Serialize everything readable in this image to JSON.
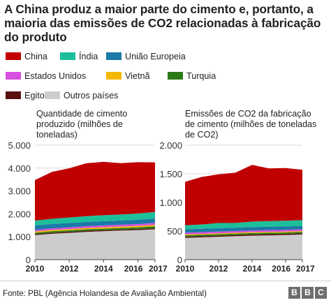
{
  "title": "A China produz a maior parte do cimento e, portanto, a maioria das emissões de CO2 relacionadas à fabricação do produto",
  "legend": [
    {
      "label": "China",
      "color": "#c00000"
    },
    {
      "label": "Índia",
      "color": "#1dbf9a"
    },
    {
      "label": "União Europeia",
      "color": "#1b7aa6"
    },
    {
      "label": "Estados Unidos",
      "color": "#d64fe0"
    },
    {
      "label": "Vietnã",
      "color": "#f5b800"
    },
    {
      "label": "Turquia",
      "color": "#2d7a1a"
    },
    {
      "label": "Egito",
      "color": "#5a0f0f"
    },
    {
      "label": "Outros países",
      "color": "#cccccc"
    }
  ],
  "source": "Fonte: PBL (Agência Holandesa de Avaliação Ambiental)",
  "brand": [
    "B",
    "B",
    "C"
  ],
  "chart_data": [
    {
      "type": "area",
      "title": "Quantidade de cimento produzido (milhões de toneladas)",
      "x": [
        2010,
        2011,
        2012,
        2013,
        2014,
        2015,
        2016,
        2017
      ],
      "xticks": [
        2010,
        2012,
        2014,
        2016,
        2017
      ],
      "ylim": [
        0,
        5000
      ],
      "yticks": [
        0,
        1000,
        2000,
        3000,
        4000,
        5000
      ],
      "ytick_labels": [
        "0",
        "1.000",
        "2.000",
        "3.000",
        "4.000",
        "5.000"
      ],
      "stacked": true,
      "series": [
        {
          "name": "Outros países",
          "values": [
            1070,
            1130,
            1170,
            1210,
            1240,
            1270,
            1290,
            1330
          ]
        },
        {
          "name": "Egito",
          "values": [
            45,
            45,
            45,
            45,
            45,
            45,
            45,
            45
          ]
        },
        {
          "name": "Turquia",
          "values": [
            60,
            65,
            65,
            70,
            70,
            70,
            75,
            80
          ]
        },
        {
          "name": "Vietnã",
          "values": [
            50,
            55,
            55,
            60,
            60,
            60,
            60,
            65
          ]
        },
        {
          "name": "Estados Unidos",
          "values": [
            70,
            70,
            75,
            75,
            80,
            80,
            85,
            85
          ]
        },
        {
          "name": "União Europeia",
          "values": [
            200,
            195,
            190,
            185,
            185,
            185,
            185,
            190
          ]
        },
        {
          "name": "Índia",
          "values": [
            210,
            225,
            240,
            255,
            260,
            265,
            275,
            285
          ]
        },
        {
          "name": "China",
          "values": [
            1770,
            2050,
            2150,
            2310,
            2330,
            2240,
            2240,
            2170
          ]
        }
      ]
    },
    {
      "type": "area",
      "title": "Emissões de CO2 da fabricação de cimento (milhões de toneladas de CO2)",
      "x": [
        2010,
        2011,
        2012,
        2013,
        2014,
        2015,
        2016,
        2017
      ],
      "xticks": [
        2010,
        2012,
        2014,
        2016,
        2017
      ],
      "ylim": [
        0,
        2000
      ],
      "yticks": [
        0,
        500,
        1000,
        1500,
        2000
      ],
      "ytick_labels": [
        "0",
        "500",
        "1.000",
        "1.500",
        "2.000"
      ],
      "stacked": true,
      "series": [
        {
          "name": "Outros países",
          "values": [
            380,
            390,
            400,
            410,
            420,
            425,
            430,
            440
          ]
        },
        {
          "name": "Egito",
          "values": [
            20,
            20,
            20,
            20,
            20,
            20,
            20,
            20
          ]
        },
        {
          "name": "Turquia",
          "values": [
            25,
            25,
            25,
            25,
            25,
            25,
            25,
            25
          ]
        },
        {
          "name": "Vietnã",
          "values": [
            15,
            15,
            15,
            15,
            15,
            15,
            15,
            15
          ]
        },
        {
          "name": "Estados Unidos",
          "values": [
            30,
            30,
            30,
            30,
            30,
            30,
            30,
            30
          ]
        },
        {
          "name": "União Europeia",
          "values": [
            60,
            60,
            60,
            60,
            60,
            60,
            60,
            60
          ]
        },
        {
          "name": "Índia",
          "values": [
            70,
            75,
            90,
            80,
            95,
            100,
            100,
            100
          ]
        },
        {
          "name": "China",
          "values": [
            760,
            830,
            850,
            880,
            990,
            920,
            920,
            880
          ]
        }
      ]
    }
  ]
}
